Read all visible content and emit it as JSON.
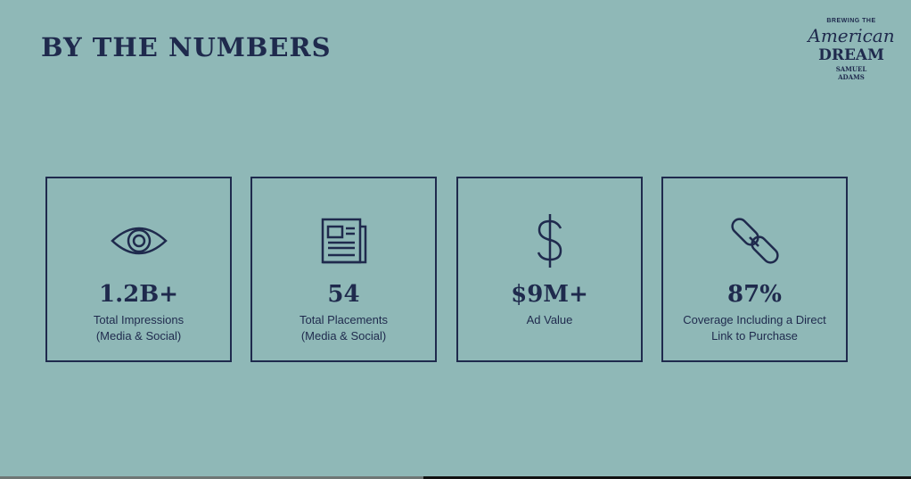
{
  "slide": {
    "title": "BY THE NUMBERS"
  },
  "logo": {
    "line1": "BREWING THE",
    "line2": "American",
    "line3": "DREAM",
    "line4": "SAMUEL",
    "line5": "ADAMS"
  },
  "cards": [
    {
      "icon": "eye-icon",
      "value": "1.2B+",
      "label1": "Total Impressions",
      "label2": "(Media & Social)"
    },
    {
      "icon": "newspaper-icon",
      "value": "54",
      "label1": "Total Placements",
      "label2": "(Media & Social)"
    },
    {
      "icon": "dollar-icon",
      "value": "$9M+",
      "label1": "Ad Value",
      "label2": ""
    },
    {
      "icon": "link-icon",
      "value": "87%",
      "label1": "Coverage Including a Direct",
      "label2": "Link to Purchase"
    }
  ],
  "colors": {
    "background": "#8fb8b7",
    "navy": "#1f2a4d"
  }
}
